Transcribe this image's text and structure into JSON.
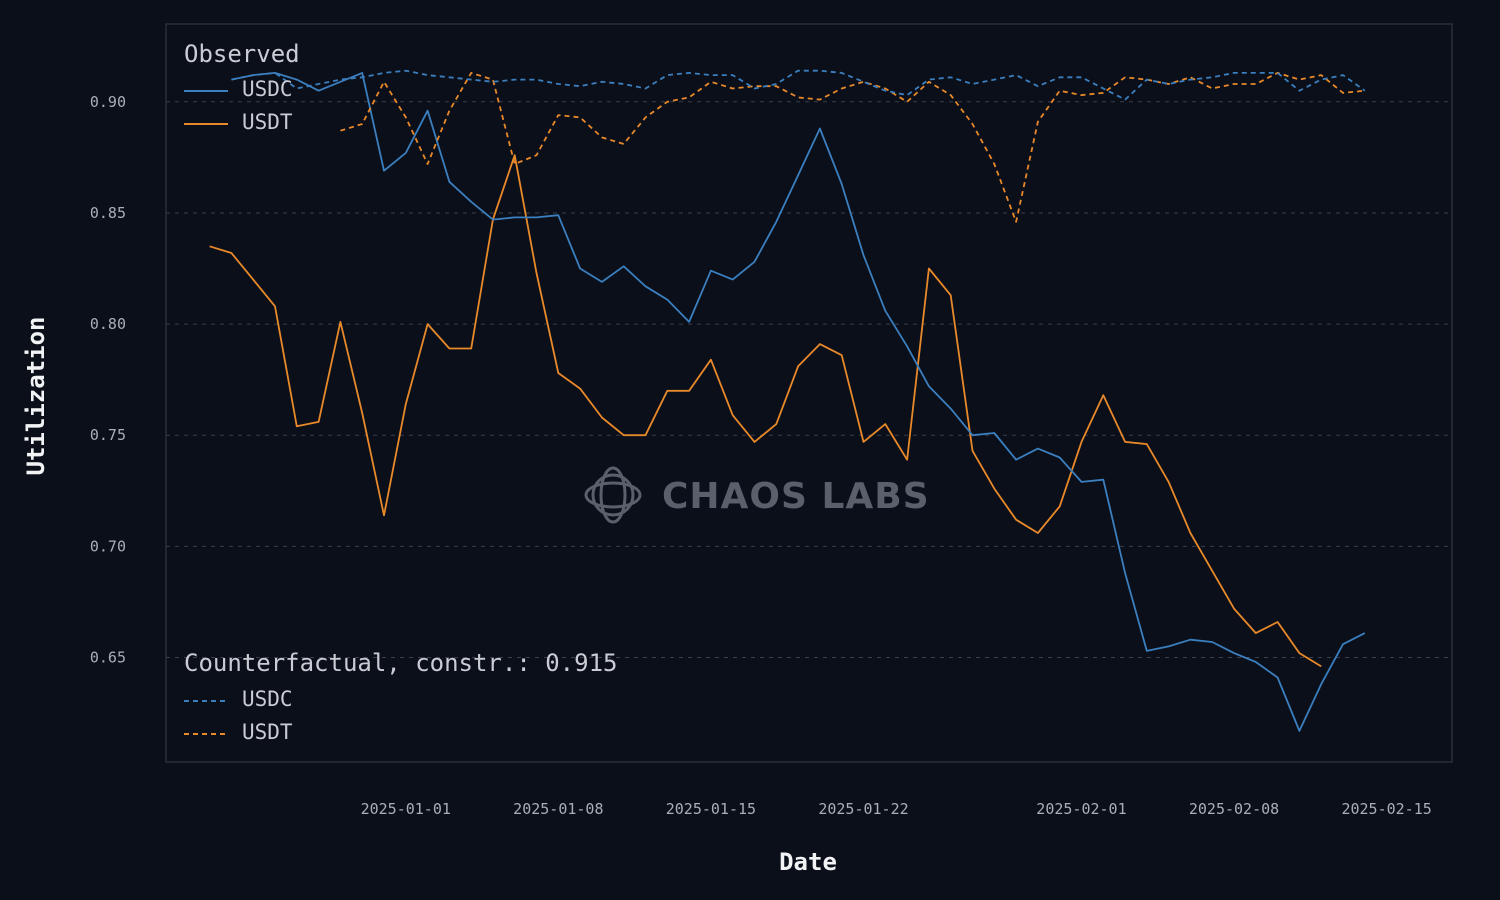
{
  "colors": {
    "usdc": "#3b7fbf",
    "usdt": "#e8892a",
    "grid": "#3a3f4a",
    "frame": "#2a2e38"
  },
  "watermark": {
    "text": "CHAOS LABS",
    "icon": "chaos-labs-logo-icon"
  },
  "chart_data": {
    "type": "line",
    "title": "",
    "xlabel": "Date",
    "ylabel": "Utilization",
    "xlim": [
      "2024-12-21",
      "2025-02-18"
    ],
    "ylim": [
      0.603,
      0.935
    ],
    "yticks": [
      0.65,
      0.7,
      0.75,
      0.8,
      0.85,
      0.9
    ],
    "ytick_labels": [
      "0.65",
      "0.70",
      "0.75",
      "0.80",
      "0.85",
      "0.90"
    ],
    "xticks": [
      "2025-01-01",
      "2025-01-08",
      "2025-01-15",
      "2025-01-22",
      "2025-02-01",
      "2025-02-08",
      "2025-02-15"
    ],
    "grid": "horizontal dashed",
    "legends": [
      {
        "title": "Observed",
        "placement": "upper-left",
        "entries": [
          {
            "label": "USDC",
            "series": "observed_usdc"
          },
          {
            "label": "USDT",
            "series": "observed_usdt"
          }
        ]
      },
      {
        "title": "Counterfactual, constr.: 0.915",
        "placement": "lower-left",
        "entries": [
          {
            "label": "USDC",
            "series": "cf_usdc"
          },
          {
            "label": "USDT",
            "series": "cf_usdt"
          }
        ]
      }
    ],
    "start_date": "2024-12-23",
    "step_days": 1,
    "series": [
      {
        "id": "observed_usdc",
        "name": "USDC",
        "group": "Observed",
        "color_key": "usdc",
        "style": "solid",
        "start_date": "2024-12-24",
        "values": [
          0.91,
          0.912,
          0.913,
          0.91,
          0.905,
          0.909,
          0.913,
          0.869,
          0.877,
          0.896,
          0.864,
          0.855,
          0.847,
          0.848,
          0.848,
          0.849,
          0.825,
          0.819,
          0.826,
          0.817,
          0.811,
          0.801,
          0.824,
          0.82,
          0.828,
          0.846,
          0.867,
          0.888,
          0.863,
          0.831,
          0.806,
          0.79,
          0.772,
          0.762,
          0.75,
          0.751,
          0.739,
          0.744,
          0.74,
          0.729,
          0.73,
          0.688,
          0.653,
          0.655,
          0.658,
          0.657,
          0.652,
          0.648,
          0.641,
          0.617,
          0.638,
          0.656,
          0.661
        ]
      },
      {
        "id": "observed_usdt",
        "name": "USDT",
        "group": "Observed",
        "color_key": "usdt",
        "style": "solid",
        "start_date": "2024-12-23",
        "values": [
          0.835,
          0.832,
          0.82,
          0.808,
          0.754,
          0.756,
          0.801,
          0.76,
          0.714,
          0.764,
          0.8,
          0.789,
          0.789,
          0.847,
          0.876,
          0.823,
          0.778,
          0.771,
          0.758,
          0.75,
          0.75,
          0.77,
          0.77,
          0.784,
          0.759,
          0.747,
          0.755,
          0.781,
          0.791,
          0.786,
          0.747,
          0.755,
          0.739,
          0.825,
          0.813,
          0.743,
          0.726,
          0.712,
          0.706,
          0.718,
          0.747,
          0.768,
          0.747,
          0.746,
          0.729,
          0.706,
          0.689,
          0.672,
          0.661,
          0.666,
          0.652,
          0.646
        ]
      },
      {
        "id": "cf_usdc",
        "name": "USDC",
        "group": "Counterfactual, constr.: 0.915",
        "color_key": "usdc",
        "style": "dashed",
        "start_date": "2024-12-24",
        "values": [
          0.91,
          0.912,
          0.913,
          0.906,
          0.908,
          0.91,
          0.911,
          0.913,
          0.914,
          0.912,
          0.911,
          0.91,
          0.909,
          0.91,
          0.91,
          0.908,
          0.907,
          0.909,
          0.908,
          0.906,
          0.912,
          0.913,
          0.912,
          0.912,
          0.906,
          0.908,
          0.914,
          0.914,
          0.913,
          0.909,
          0.905,
          0.903,
          0.91,
          0.911,
          0.908,
          0.91,
          0.912,
          0.907,
          0.911,
          0.911,
          0.906,
          0.901,
          0.91,
          0.908,
          0.91,
          0.911,
          0.913,
          0.913,
          0.913,
          0.905,
          0.91,
          0.912,
          0.905
        ]
      },
      {
        "id": "cf_usdt",
        "name": "USDT",
        "group": "Counterfactual, constr.: 0.915",
        "color_key": "usdt",
        "style": "dashed",
        "start_date": "2024-12-29",
        "values": [
          0.887,
          0.89,
          0.909,
          0.893,
          0.872,
          0.896,
          0.913,
          0.91,
          0.872,
          0.876,
          0.894,
          0.893,
          0.884,
          0.881,
          0.893,
          0.9,
          0.902,
          0.909,
          0.906,
          0.907,
          0.907,
          0.902,
          0.901,
          0.906,
          0.909,
          0.906,
          0.9,
          0.909,
          0.903,
          0.89,
          0.872,
          0.846,
          0.891,
          0.905,
          0.903,
          0.904,
          0.911,
          0.91,
          0.908,
          0.911,
          0.906,
          0.908,
          0.908,
          0.913,
          0.91,
          0.912,
          0.904,
          0.905
        ]
      }
    ]
  }
}
